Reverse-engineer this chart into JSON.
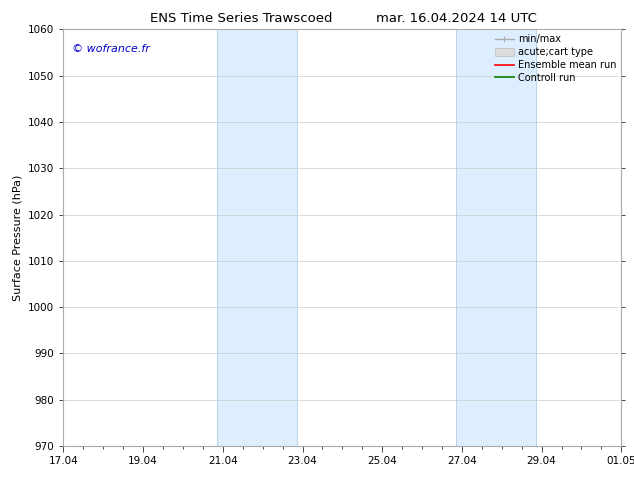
{
  "title": "ENS Time Series Trawscoed",
  "title2": "mar. 16.04.2024 14 UTC",
  "ylabel": "Surface Pressure (hPa)",
  "ylim": [
    970,
    1060
  ],
  "yticks": [
    970,
    980,
    990,
    1000,
    1010,
    1020,
    1030,
    1040,
    1050,
    1060
  ],
  "xtick_labels": [
    "17.04",
    "19.04",
    "21.04",
    "23.04",
    "25.04",
    "27.04",
    "29.04",
    "01.05"
  ],
  "xtick_positions": [
    0,
    2,
    4,
    6,
    8,
    10,
    12,
    14
  ],
  "x_total_days": 14,
  "shaded_regions": [
    {
      "xmin": 3.85,
      "xmax": 5.85,
      "color": "#ddeeff"
    },
    {
      "xmin": 9.85,
      "xmax": 11.85,
      "color": "#ddeeff"
    }
  ],
  "shaded_line_color": "#b8d4e8",
  "watermark_text": "© wofrance.fr",
  "watermark_color": "#0000cc",
  "bg_color": "#ffffff",
  "grid_color": "#cccccc",
  "title_fontsize": 9.5,
  "tick_fontsize": 7.5,
  "ylabel_fontsize": 8,
  "legend_fontsize": 7
}
